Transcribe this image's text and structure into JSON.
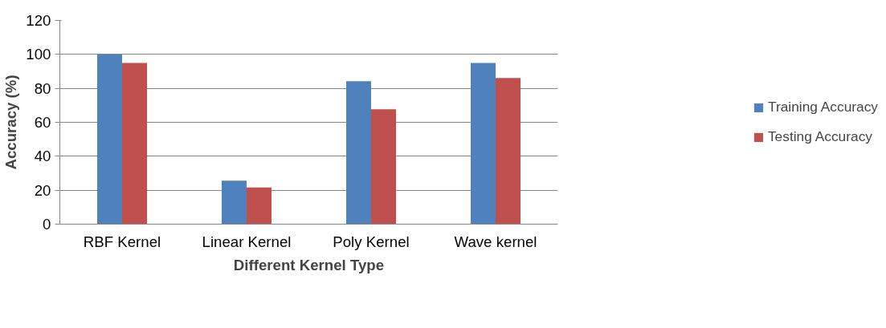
{
  "chart_data": {
    "type": "bar",
    "xlabel": "Different Kernel Type",
    "ylabel": "Accuracy (%)",
    "categories": [
      "RBF Kernel",
      "Linear Kernel",
      "Poly Kernel",
      "Wave kernel"
    ],
    "series": [
      {
        "name": "Training Accuracy",
        "color": "#4f81bd",
        "values": [
          100,
          25.6,
          84.2,
          95
        ]
      },
      {
        "name": "Testing Accuracy",
        "color": "#c0504d",
        "values": [
          95,
          21.6,
          67.7,
          86.1
        ]
      }
    ],
    "ylim": [
      0,
      120
    ],
    "yticks": [
      0,
      20,
      40,
      60,
      80,
      100,
      120
    ],
    "grid": "y",
    "legend": "right"
  }
}
